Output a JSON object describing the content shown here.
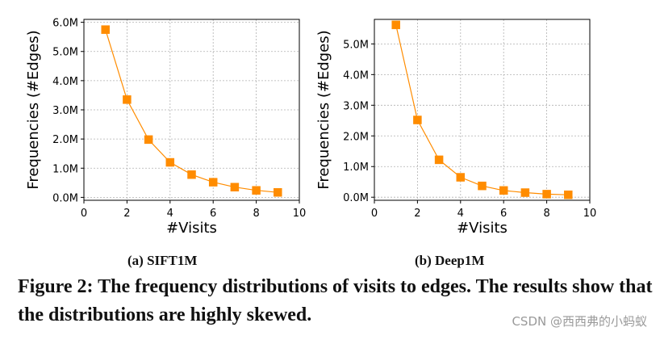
{
  "chart_data": [
    {
      "type": "line",
      "subcaption": "(a) SIFT1M",
      "xlabel": "#Visits",
      "ylabel": "Frequencies (#Edges)",
      "xlim": [
        0,
        10
      ],
      "ylim": [
        -0.1,
        6.1
      ],
      "xticks": [
        0,
        2,
        4,
        6,
        8,
        10
      ],
      "xtick_labels": [
        "0",
        "2",
        "4",
        "6",
        "8",
        "10"
      ],
      "yticks": [
        0,
        1,
        2,
        3,
        4,
        5,
        6
      ],
      "ytick_labels": [
        "0.0M",
        "1.0M",
        "2.0M",
        "3.0M",
        "4.0M",
        "5.0M",
        "6.0M"
      ],
      "grid": true,
      "color": "#ff8c00",
      "marker": "square",
      "series": [
        {
          "x": [
            1,
            2,
            3,
            4,
            5,
            6,
            7,
            8,
            9
          ],
          "values": [
            5.75,
            3.35,
            1.98,
            1.2,
            0.78,
            0.52,
            0.35,
            0.24,
            0.17
          ]
        }
      ]
    },
    {
      "type": "line",
      "subcaption": "(b) Deep1M",
      "xlabel": "#Visits",
      "ylabel": "Frequencies (#Edges)",
      "xlim": [
        0,
        10
      ],
      "ylim": [
        -0.1,
        5.8
      ],
      "xticks": [
        0,
        2,
        4,
        6,
        8,
        10
      ],
      "xtick_labels": [
        "0",
        "2",
        "4",
        "6",
        "8",
        "10"
      ],
      "yticks": [
        0,
        1,
        2,
        3,
        4,
        5
      ],
      "ytick_labels": [
        "0.0M",
        "1.0M",
        "2.0M",
        "3.0M",
        "4.0M",
        "5.0M"
      ],
      "grid": true,
      "color": "#ff8c00",
      "marker": "square",
      "series": [
        {
          "x": [
            1,
            2,
            3,
            4,
            5,
            6,
            7,
            8,
            9
          ],
          "values": [
            5.62,
            2.52,
            1.22,
            0.65,
            0.37,
            0.22,
            0.15,
            0.1,
            0.08
          ]
        }
      ]
    }
  ],
  "caption": "Figure 2: The frequency distributions of visits to edges. The results show that the distributions are highly skewed.",
  "watermark": "CSDN @西西弗的小蚂蚁"
}
